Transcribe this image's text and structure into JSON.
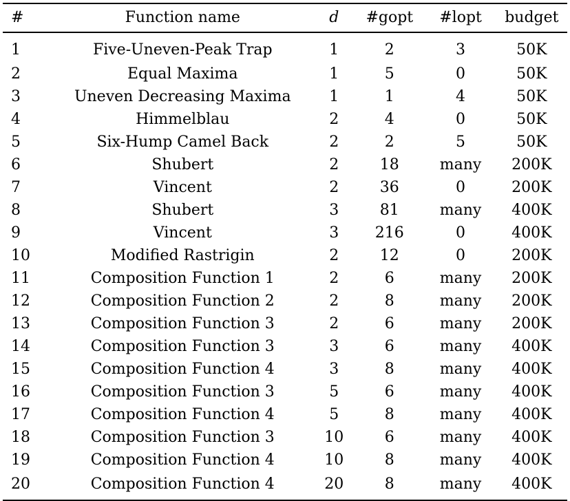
{
  "columns": [
    "#",
    "Function name",
    "d",
    "#gopt",
    "#lopt",
    "budget"
  ],
  "rows": [
    [
      "1",
      "Five-Uneven-Peak Trap",
      "1",
      "2",
      "3",
      "50K"
    ],
    [
      "2",
      "Equal Maxima",
      "1",
      "5",
      "0",
      "50K"
    ],
    [
      "3",
      "Uneven Decreasing Maxima",
      "1",
      "1",
      "4",
      "50K"
    ],
    [
      "4",
      "Himmelblau",
      "2",
      "4",
      "0",
      "50K"
    ],
    [
      "5",
      "Six-Hump Camel Back",
      "2",
      "2",
      "5",
      "50K"
    ],
    [
      "6",
      "Shubert",
      "2",
      "18",
      "many",
      "200K"
    ],
    [
      "7",
      "Vincent",
      "2",
      "36",
      "0",
      "200K"
    ],
    [
      "8",
      "Shubert",
      "3",
      "81",
      "many",
      "400K"
    ],
    [
      "9",
      "Vincent",
      "3",
      "216",
      "0",
      "400K"
    ],
    [
      "10",
      "Modified Rastrigin",
      "2",
      "12",
      "0",
      "200K"
    ],
    [
      "11",
      "Composition Function 1",
      "2",
      "6",
      "many",
      "200K"
    ],
    [
      "12",
      "Composition Function 2",
      "2",
      "8",
      "many",
      "200K"
    ],
    [
      "13",
      "Composition Function 3",
      "2",
      "6",
      "many",
      "200K"
    ],
    [
      "14",
      "Composition Function 3",
      "3",
      "6",
      "many",
      "400K"
    ],
    [
      "15",
      "Composition Function 4",
      "3",
      "8",
      "many",
      "400K"
    ],
    [
      "16",
      "Composition Function 3",
      "5",
      "6",
      "many",
      "400K"
    ],
    [
      "17",
      "Composition Function 4",
      "5",
      "8",
      "many",
      "400K"
    ],
    [
      "18",
      "Composition Function 3",
      "10",
      "6",
      "many",
      "400K"
    ],
    [
      "19",
      "Composition Function 4",
      "10",
      "8",
      "many",
      "400K"
    ],
    [
      "20",
      "Composition Function 4",
      "20",
      "8",
      "many",
      "400K"
    ]
  ]
}
